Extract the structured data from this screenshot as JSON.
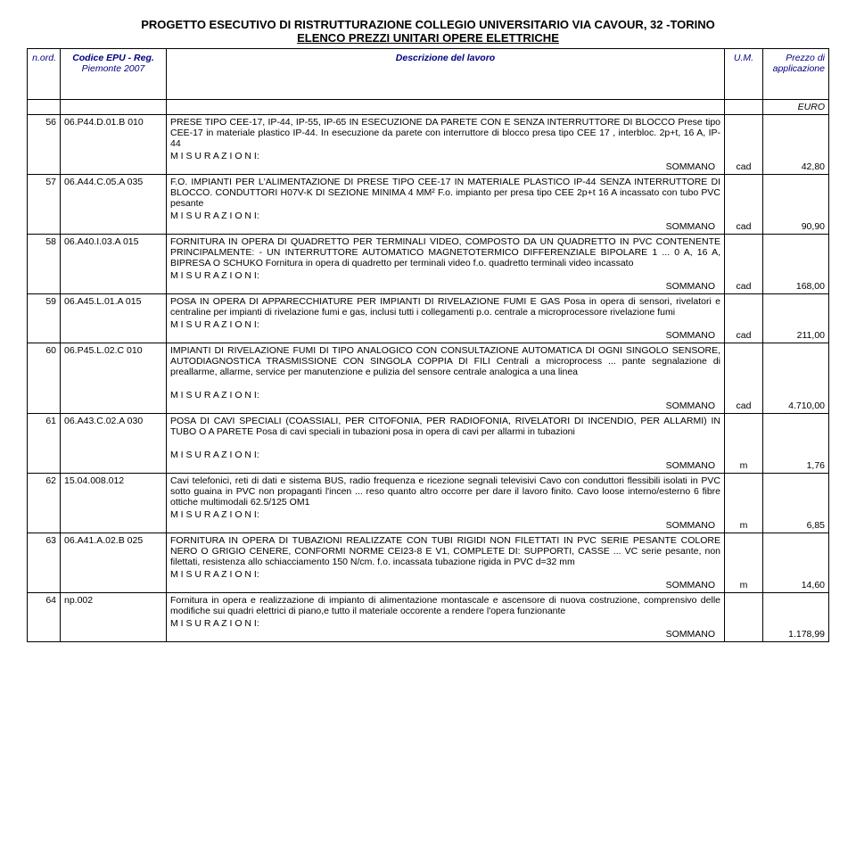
{
  "title_main": "PROGETTO ESECUTIVO DI RISTRUTTURAZIONE COLLEGIO UNIVERSITARIO VIA CAVOUR, 32 -TORINO",
  "title_sub": "ELENCO PREZZI UNITARI OPERE ELETTRICHE",
  "headers": {
    "n": "n.ord.",
    "code_l1": "Codice EPU - Reg.",
    "code_l2": "Piemonte 2007",
    "desc": "Descrizione del lavoro",
    "um": "U.M.",
    "prezzo_l1": "Prezzo di",
    "prezzo_l2": "applicazione",
    "euro": "EURO"
  },
  "labels": {
    "misurazioni": "M I S U R A Z I O N I:",
    "sommano": "SOMMANO"
  },
  "rows": [
    {
      "n": "56",
      "code": "06.P44.D.01.B 010",
      "desc": "PRESE TIPO CEE-17, IP-44, IP-55, IP-65 IN ESECUZIONE DA PARETE CON E SENZA INTERRUTTORE DI BLOCCO Prese tipo CEE-17 in materiale plastico IP-44. In esecuzione da parete con interruttore di blocco presa tipo CEE 17 , interbloc. 2p+t, 16 A, IP-44",
      "um": "cad",
      "prezzo": "42,80"
    },
    {
      "n": "57",
      "code": "06.A44.C.05.A 035",
      "desc": "F.O. IMPIANTI PER L'ALIMENTAZIONE DI PRESE TIPO CEE-17 IN MATERIALE PLASTICO IP-44 SENZA INTERRUTTORE DI BLOCCO. CONDUTTORI H07V-K DI SEZIONE MINIMA 4 MM² F.o. impianto per presa tipo CEE 2p+t 16 A incassato con tubo PVC pesante",
      "um": "cad",
      "prezzo": "90,90"
    },
    {
      "n": "58",
      "code": "06.A40.I.03.A 015",
      "desc": "FORNITURA IN OPERA DI QUADRETTO PER TERMINALI VIDEO, COMPOSTO DA UN QUADRETTO IN PVC CONTENENTE PRINCIPALMENTE: - UN INTERRUTTORE AUTOMATICO MAGNETOTERMICO DIFFERENZIALE BIPOLARE 1 ... 0 A, 16 A, BIPRESA O SCHUKO Fornitura in opera di quadretto per terminali video f.o. quadretto terminali video incassato",
      "um": "cad",
      "prezzo": "168,00"
    },
    {
      "n": "59",
      "code": "06.A45.L.01.A 015",
      "desc": "POSA IN OPERA DI APPARECCHIATURE PER IMPIANTI DI RIVELAZIONE FUMI E GAS Posa in opera di sensori, rivelatori e centraline per impianti di rivelazione fumi e gas, inclusi tutti i collegamenti p.o. centrale a microprocessore rivelazione fumi",
      "um": "cad",
      "prezzo": "211,00"
    },
    {
      "n": "60",
      "code": "06.P45.L.02.C 010",
      "desc": "IMPIANTI DI RIVELAZIONE FUMI DI TIPO ANALOGICO CON CONSULTAZIONE AUTOMATICA DI OGNI SINGOLO SENSORE, AUTODIAGNOSTICA TRASMISSIONE CON SINGOLA COPPIA DI FILI Centrali a microprocess ... pante segnalazione di preallarme, allarme, service per manutenzione e pulizia del sensore centrale analogica a una linea",
      "um": "cad",
      "prezzo": "4.710,00",
      "extra_gap": true
    },
    {
      "n": "61",
      "code": "06.A43.C.02.A 030",
      "desc": "POSA DI CAVI SPECIALI (COASSIALI, PER CITOFONIA, PER RADIOFONIA, RIVELATORI DI INCENDIO, PER ALLARMI) IN TUBO O A PARETE Posa di cavi speciali in tubazioni posa in opera di cavi per allarmi in tubazioni",
      "um": "m",
      "prezzo": "1,76",
      "extra_gap": true
    },
    {
      "n": "62",
      "code": "15.04.008.012",
      "desc": "Cavi telefonici, reti di dati e sistema BUS, radio frequenza e ricezione segnali televisivi Cavo con conduttori flessibili isolati in PVC sotto guaina in PVC non propaganti l'incen ... reso quanto altro occorre per dare il lavoro finito. Cavo loose interno/esterno 6 fibre ottiche multimodali 62.5/125 OM1",
      "um": "m",
      "prezzo": "6,85"
    },
    {
      "n": "63",
      "code": "06.A41.A.02.B 025",
      "desc": "FORNITURA IN OPERA DI TUBAZIONI REALIZZATE CON TUBI RIGIDI NON FILETTATI IN PVC SERIE PESANTE COLORE NERO O GRIGIO CENERE, CONFORMI NORME CEI23-8 E V1, COMPLETE DI: SUPPORTI, CASSE ... VC serie pesante, non filettati, resistenza allo schiacciamento 150 N/cm. f.o. incassata tubazione rigida in PVC d=32 mm",
      "um": "m",
      "prezzo": "14,60"
    },
    {
      "n": "64",
      "code": "np.002",
      "desc": "Fornitura in opera e realizzazione di impianto di alimentazione montascale e ascensore di nuova costruzione, comprensivo delle modifiche sui quadri elettrici di piano,e tutto il materiale occorente a rendere l'opera funzionante",
      "um": "",
      "prezzo": "1.178,99"
    }
  ]
}
